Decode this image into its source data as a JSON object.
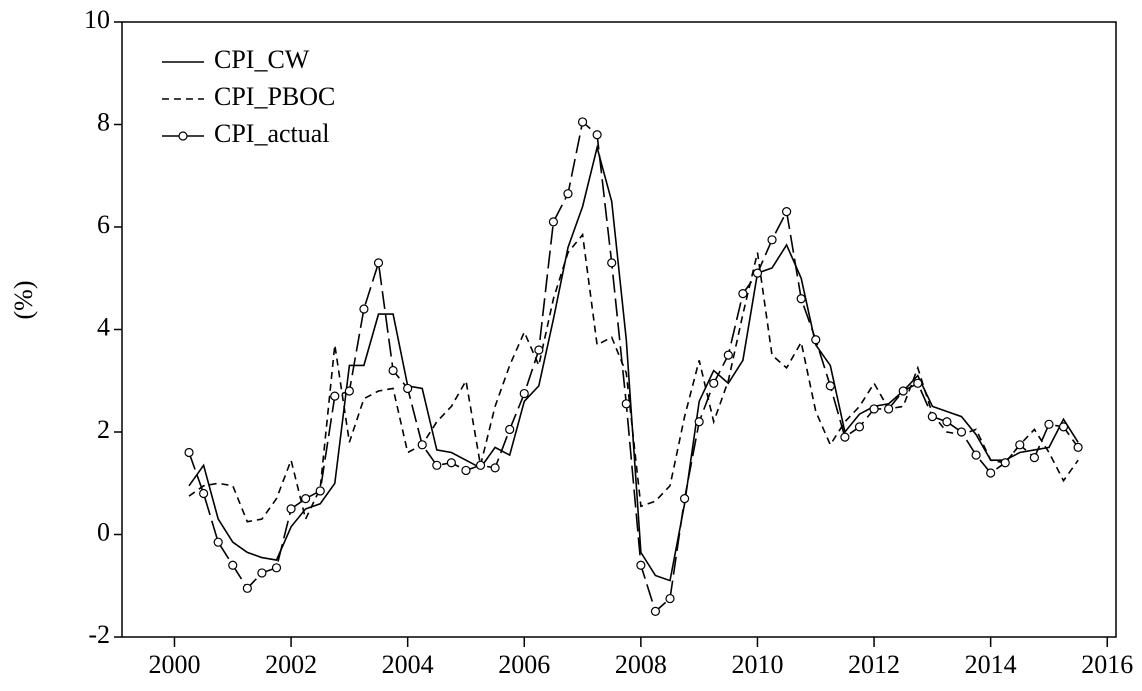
{
  "chart_data": {
    "type": "line",
    "y_label": "(%)",
    "x": [
      2000.25,
      2000.5,
      2000.75,
      2001.0,
      2001.25,
      2001.5,
      2001.75,
      2002.0,
      2002.25,
      2002.5,
      2002.75,
      2003.0,
      2003.25,
      2003.5,
      2003.75,
      2004.0,
      2004.25,
      2004.5,
      2004.75,
      2005.0,
      2005.25,
      2005.5,
      2005.75,
      2006.0,
      2006.25,
      2006.5,
      2006.75,
      2007.0,
      2007.25,
      2007.5,
      2007.75,
      2008.0,
      2008.25,
      2008.5,
      2008.75,
      2009.0,
      2009.25,
      2009.5,
      2009.75,
      2010.0,
      2010.25,
      2010.5,
      2010.75,
      2011.0,
      2011.25,
      2011.5,
      2011.75,
      2012.0,
      2012.25,
      2012.5,
      2012.75,
      2013.0,
      2013.25,
      2013.5,
      2013.75,
      2014.0,
      2014.25,
      2014.5,
      2014.75,
      2015.0,
      2015.25,
      2015.5
    ],
    "series": [
      {
        "name": "CPI_CW",
        "color": "#000000",
        "linestyle": "solid",
        "values": [
          0.95,
          1.35,
          0.3,
          -0.15,
          -0.35,
          -0.45,
          -0.5,
          0.15,
          0.5,
          0.6,
          1.0,
          3.3,
          3.3,
          4.3,
          4.3,
          2.9,
          2.85,
          1.65,
          1.6,
          1.45,
          1.3,
          1.7,
          1.55,
          2.6,
          2.9,
          4.2,
          5.6,
          6.4,
          7.55,
          6.5,
          3.8,
          -0.35,
          -0.8,
          -0.9,
          0.6,
          2.6,
          3.2,
          2.95,
          3.4,
          5.1,
          5.2,
          5.65,
          5.0,
          3.7,
          3.3,
          2.0,
          2.35,
          2.5,
          2.55,
          2.8,
          3.1,
          2.5,
          2.4,
          2.3,
          1.95,
          1.45,
          1.45,
          1.6,
          1.65,
          1.7,
          2.25,
          1.8
        ]
      },
      {
        "name": "CPI_PBOC",
        "color": "#000000",
        "linestyle": "dashed",
        "values": [
          0.75,
          0.95,
          1.0,
          0.95,
          0.25,
          0.3,
          0.7,
          1.45,
          0.3,
          0.9,
          3.7,
          1.8,
          2.65,
          2.8,
          2.85,
          1.6,
          1.75,
          2.2,
          2.5,
          3.0,
          1.35,
          2.5,
          3.3,
          3.95,
          3.3,
          4.6,
          5.5,
          5.85,
          3.7,
          3.85,
          3.15,
          0.55,
          0.65,
          0.95,
          2.3,
          3.4,
          2.2,
          3.0,
          4.3,
          5.5,
          3.5,
          3.25,
          3.75,
          2.4,
          1.75,
          2.2,
          2.5,
          2.95,
          2.45,
          2.5,
          3.25,
          2.35,
          2.0,
          1.95,
          2.05,
          1.45,
          1.4,
          1.75,
          2.05,
          1.6,
          1.05,
          1.45
        ]
      },
      {
        "name": "CPI_actual",
        "color": "#000000",
        "linestyle": "longdash",
        "marker": "circle",
        "values": [
          1.6,
          0.8,
          -0.15,
          -0.6,
          -1.05,
          -0.75,
          -0.65,
          0.5,
          0.7,
          0.85,
          2.7,
          2.8,
          4.4,
          5.3,
          3.2,
          2.85,
          1.75,
          1.35,
          1.4,
          1.25,
          1.35,
          1.3,
          2.05,
          2.75,
          3.6,
          6.1,
          6.65,
          8.05,
          7.8,
          5.3,
          2.55,
          -0.6,
          -1.5,
          -1.25,
          0.7,
          2.2,
          2.95,
          3.5,
          4.7,
          5.1,
          5.75,
          6.3,
          4.6,
          3.8,
          2.9,
          1.9,
          2.1,
          2.45,
          2.45,
          2.8,
          2.95,
          2.3,
          2.2,
          2.0,
          1.55,
          1.2,
          1.4,
          1.75,
          1.5,
          2.15,
          2.1,
          1.7
        ]
      }
    ],
    "xlim": [
      1999.1,
      2016.15
    ],
    "xticks": [
      2000,
      2002,
      2004,
      2006,
      2008,
      2010,
      2012,
      2014,
      2016
    ],
    "ylim": [
      -2,
      10
    ],
    "yticks": [
      -2,
      0,
      2,
      4,
      6,
      8,
      10
    ],
    "legend": "upper left",
    "grid": false
  }
}
